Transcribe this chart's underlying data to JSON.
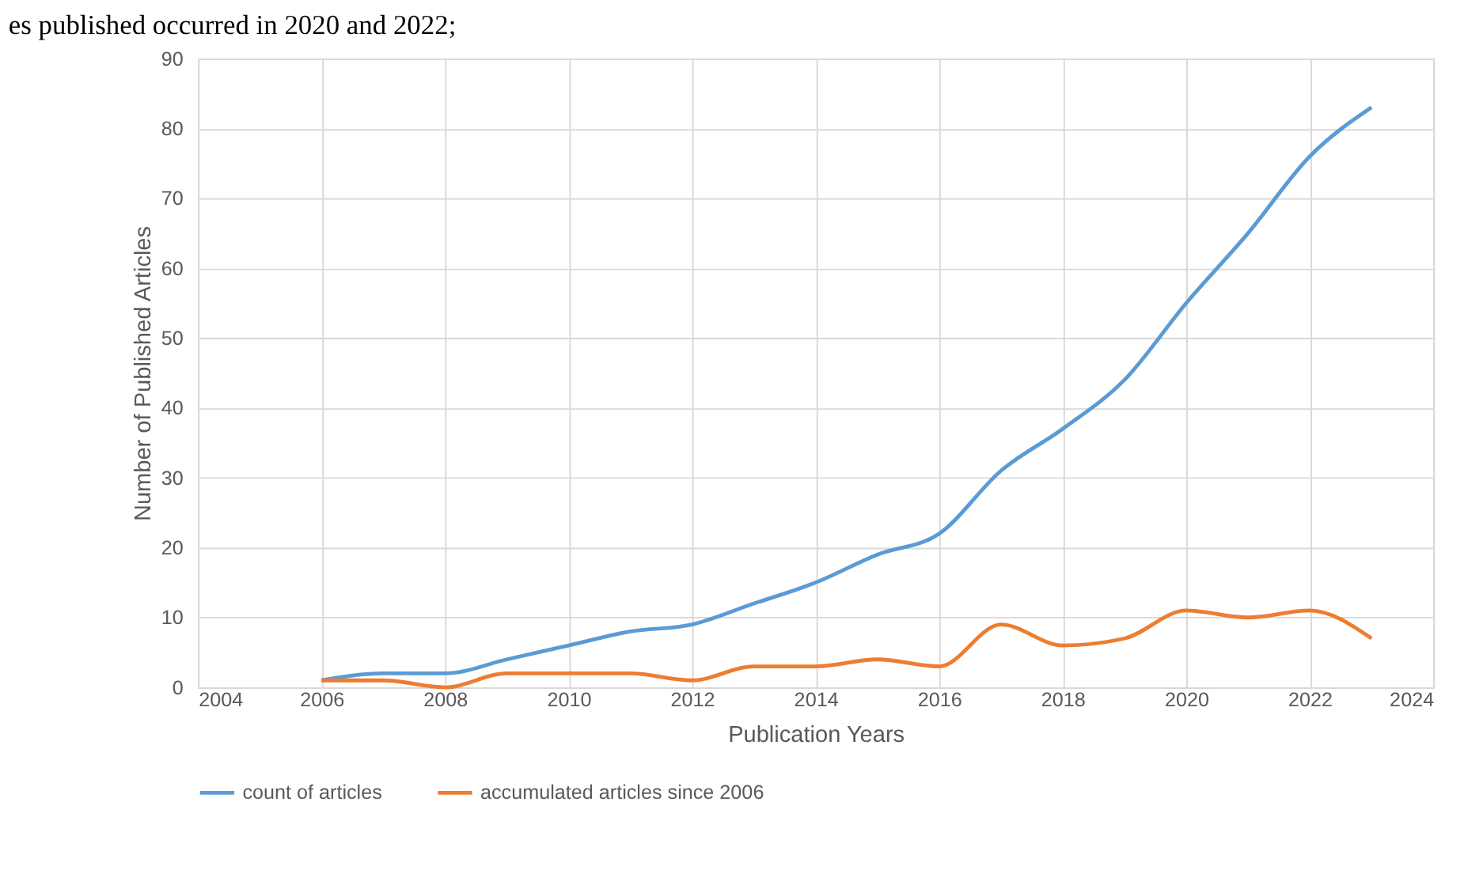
{
  "chart_data": {
    "type": "line",
    "xlabel": "Publication Years",
    "ylabel": "Number of Published Articles",
    "annotations": [
      "es published occurred in 2020 and 2022;"
    ],
    "x": [
      2006,
      2007,
      2008,
      2009,
      2010,
      2011,
      2012,
      2013,
      2014,
      2015,
      2016,
      2017,
      2018,
      2019,
      2020,
      2021,
      2022,
      2023
    ],
    "series": [
      {
        "name": "count of articles",
        "color": "#5b9bd5",
        "values": [
          1,
          2,
          2,
          4,
          6,
          8,
          9,
          12,
          15,
          19,
          22,
          31,
          37,
          44,
          55,
          65,
          76,
          83
        ]
      },
      {
        "name": "accumulated articles since 2006",
        "color": "#ed7d31",
        "values": [
          1,
          1,
          0,
          2,
          2,
          2,
          1,
          3,
          3,
          4,
          3,
          9,
          6,
          7,
          11,
          10,
          11,
          7
        ]
      }
    ],
    "xlim": [
      2004,
      2024
    ],
    "xticks": [
      2004,
      2006,
      2008,
      2010,
      2012,
      2014,
      2016,
      2018,
      2020,
      2022,
      2024
    ],
    "ylim": [
      0,
      90
    ],
    "yticks": [
      0,
      10,
      20,
      30,
      40,
      50,
      60,
      70,
      80,
      90
    ],
    "grid": true,
    "legend": "bottom",
    "marker": "none",
    "line_style": "solid"
  }
}
